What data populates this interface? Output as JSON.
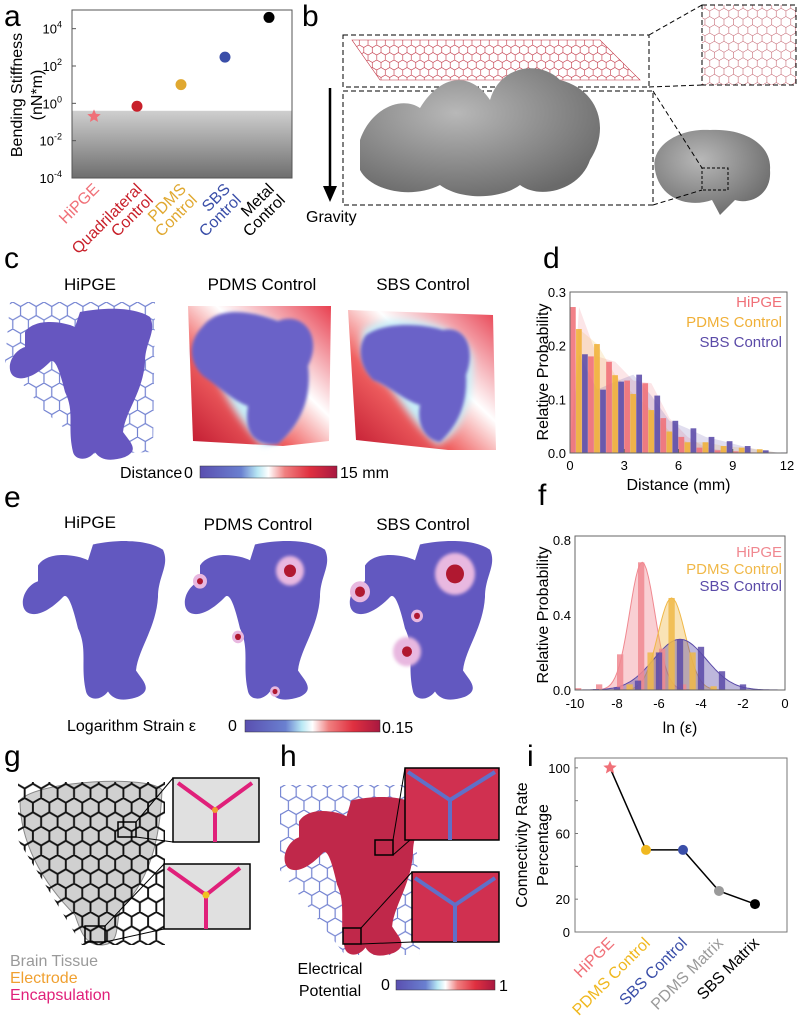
{
  "panel_labels": {
    "a": "a",
    "b": "b",
    "c": "c",
    "d": "d",
    "e": "e",
    "f": "f",
    "g": "g",
    "h": "h",
    "i": "i"
  },
  "panel_b": {
    "gravity_label": "Gravity"
  },
  "panel_c": {
    "titles": [
      "HiPGE",
      "PDMS Control",
      "SBS Control"
    ],
    "colorbar": {
      "label": "Distance",
      "min": "0",
      "max": "15 mm"
    }
  },
  "panel_e": {
    "titles": [
      "HiPGE",
      "PDMS Control",
      "SBS Control"
    ],
    "colorbar": {
      "label": "Logarithm Strain ε",
      "min": "0",
      "max": "0.15"
    }
  },
  "panel_g": {
    "legend": [
      {
        "label": "Brain Tissue",
        "color": "#9a9a9a"
      },
      {
        "label": "Electrode",
        "color": "#f0a030"
      },
      {
        "label": "Encapsulation",
        "color": "#e0207a"
      }
    ]
  },
  "panel_h": {
    "colorbar": {
      "label_line1": "Electrical",
      "label_line2": "Potential",
      "min": "0",
      "max": "1"
    }
  },
  "colors": {
    "hipge": "#f07078",
    "quadrilateral": "#c8202a",
    "pdms": "#f0b038",
    "sbs": "#5a4aa8",
    "metal": "#000000",
    "pdms_matrix": "#9a9a9a",
    "sbs_matrix": "#000000"
  },
  "chart_data": [
    {
      "panel": "a",
      "type": "scatter",
      "ylabel": [
        "Bending Stiffness",
        "(nN*m)"
      ],
      "yscale": "log",
      "ylim": [
        0.0001,
        100000
      ],
      "ytick_base": "10",
      "ytick_exponents": [
        "4",
        "2",
        "0",
        "-2",
        "-4"
      ],
      "shaded_below": 0.4,
      "categories": [
        {
          "lines": [
            "HiPGE"
          ],
          "color": "#f07078",
          "marker": "star"
        },
        {
          "lines": [
            "Quadrilateral",
            "Control"
          ],
          "color": "#c8202a",
          "marker": "circle"
        },
        {
          "lines": [
            "PDMS",
            "Control"
          ],
          "color": "#e0a830",
          "marker": "circle"
        },
        {
          "lines": [
            "SBS",
            "Control"
          ],
          "color": "#3a4ea8",
          "marker": "circle"
        },
        {
          "lines": [
            "Metal",
            "Control"
          ],
          "color": "#000000",
          "marker": "circle"
        }
      ],
      "values": [
        0.2,
        0.7,
        10,
        300,
        40000
      ]
    },
    {
      "panel": "d",
      "type": "bar",
      "xlabel": "Distance (mm)",
      "ylabel": "Relative Probability",
      "xlim": [
        0,
        12
      ],
      "ylim": [
        0,
        0.3
      ],
      "xticks": [
        "0",
        "3",
        "6",
        "9",
        "12"
      ],
      "yticks": [
        "0.0",
        "0.1",
        "0.2",
        "0.3"
      ],
      "bin_width": 1,
      "legend_position": "top-right",
      "series": [
        {
          "name": "HiPGE",
          "color": "#f07078",
          "values": [
            0.272,
            0.18,
            0.17,
            0.135,
            0.13,
            0.065,
            0.03,
            0.01,
            0.005,
            0.003,
            0.001,
            0
          ]
        },
        {
          "name": "PDMS Control",
          "color": "#f0b038",
          "values": [
            0.231,
            0.203,
            0.145,
            0.11,
            0.08,
            0.04,
            0.02,
            0.02,
            0.013,
            0.01,
            0.007,
            0
          ]
        },
        {
          "name": "SBS Control",
          "color": "#5a4aa8",
          "values": [
            0.184,
            0.118,
            0.133,
            0.146,
            0.107,
            0.06,
            0.046,
            0.03,
            0.022,
            0.013,
            0.005,
            0.001
          ]
        }
      ]
    },
    {
      "panel": "f",
      "type": "bar",
      "xlabel": "ln (ε)",
      "ylabel": "Relative Probability",
      "xlim": [
        -10,
        0
      ],
      "ylim": [
        0,
        0.82
      ],
      "xticks": [
        "-10",
        "-8",
        "-6",
        "-4",
        "-2",
        "0"
      ],
      "yticks": [
        "0.0",
        "0.4",
        "0.8"
      ],
      "legend_position": "top-right",
      "series": [
        {
          "name": "HiPGE",
          "color": "#f08890",
          "x": [
            -9.85,
            -8.85,
            -7.85,
            -6.85,
            -5.85,
            -4.85
          ],
          "values": [
            0.01,
            0.03,
            0.19,
            0.68,
            0.22,
            0.03
          ],
          "fit": {
            "mean": -6.8,
            "sd": 0.6,
            "peak": 0.68
          }
        },
        {
          "name": "PDMS Control",
          "color": "#f0b848",
          "x": [
            -7.4,
            -6.4,
            -5.4,
            -4.4,
            -3.4
          ],
          "values": [
            0.03,
            0.2,
            0.49,
            0.2,
            0.02
          ],
          "fit": {
            "mean": -5.4,
            "sd": 0.65,
            "peak": 0.49
          }
        },
        {
          "name": "SBS Control",
          "color": "#5a4aa8",
          "x": [
            -9,
            -8,
            -7,
            -6,
            -5,
            -4,
            -3,
            -2
          ],
          "values": [
            0.005,
            0.015,
            0.05,
            0.2,
            0.27,
            0.23,
            0.1,
            0.03
          ],
          "fit": {
            "mean": -5.0,
            "sd": 1.25,
            "peak": 0.27
          }
        }
      ]
    },
    {
      "panel": "i",
      "type": "line",
      "ylabel": [
        "Connectivity Rate",
        "Percentage"
      ],
      "ylim": [
        0,
        106
      ],
      "yticks": [
        "0",
        "20",
        "60",
        "100"
      ],
      "ytick_values": [
        0,
        20,
        60,
        100
      ],
      "categories": [
        {
          "label": "HiPGE",
          "color": "#f07078",
          "marker": "star"
        },
        {
          "label": "PDMS Control",
          "color": "#f0b820",
          "marker": "circle"
        },
        {
          "label": "SBS Control",
          "color": "#3a4ea8",
          "marker": "circle"
        },
        {
          "label": "PDMS Matrix",
          "color": "#9a9a9a",
          "marker": "circle"
        },
        {
          "label": "SBS Matrix",
          "color": "#000000",
          "marker": "circle"
        }
      ],
      "values": [
        100,
        50,
        50,
        25,
        17
      ]
    }
  ]
}
